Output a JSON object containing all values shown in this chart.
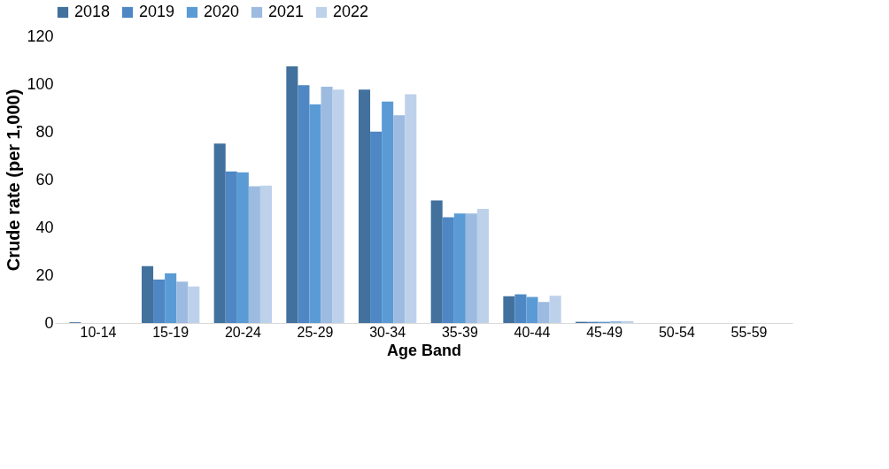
{
  "chart_data": {
    "type": "bar",
    "xlabel": "Age Band",
    "ylabel": "Crude rate (per 1,000)",
    "categories": [
      "10-14",
      "15-19",
      "20-24",
      "25-29",
      "30-34",
      "35-39",
      "40-44",
      "45-49",
      "50-54",
      "55-59"
    ],
    "series": [
      {
        "name": "2018",
        "color": "#41719c",
        "values": [
          0.3,
          23.8,
          75.1,
          107.4,
          97.7,
          51.3,
          11.2,
          0.5,
          0,
          0
        ]
      },
      {
        "name": "2019",
        "color": "#4e87c4",
        "values": [
          0,
          18.2,
          63.4,
          99.5,
          80.1,
          44.3,
          12.0,
          0.5,
          0,
          0
        ]
      },
      {
        "name": "2020",
        "color": "#5b9bd5",
        "values": [
          0,
          20.8,
          63.1,
          91.5,
          92.7,
          45.8,
          10.9,
          0.5,
          0,
          0
        ]
      },
      {
        "name": "2021",
        "color": "#9dbbe0",
        "values": [
          0,
          17.3,
          57.2,
          98.9,
          86.9,
          45.8,
          8.8,
          0.8,
          0,
          0
        ]
      },
      {
        "name": "2022",
        "color": "#bdd1ea",
        "values": [
          0,
          15.3,
          57.5,
          97.7,
          95.7,
          47.8,
          11.4,
          0.8,
          0,
          0
        ]
      }
    ],
    "ylim": [
      0,
      120
    ],
    "yticks": [
      0,
      20,
      40,
      60,
      80,
      100,
      120
    ],
    "grid": false,
    "legend": "top"
  }
}
